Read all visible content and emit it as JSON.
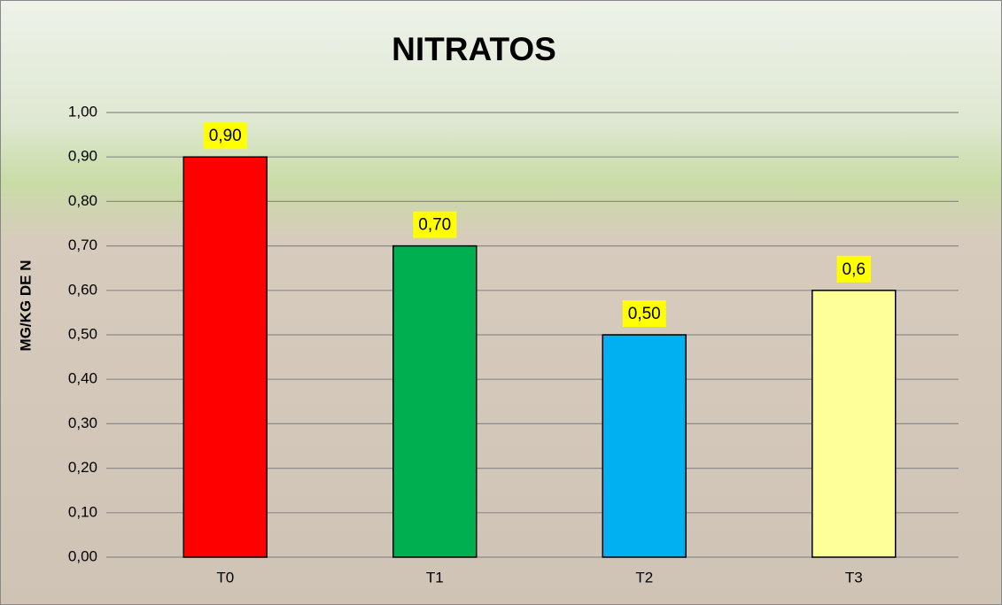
{
  "chart_data": {
    "type": "bar",
    "title": "NITRATOS",
    "y_label": "MG/KG DE N",
    "categories": [
      "T0",
      "T1",
      "T2",
      "T3"
    ],
    "values": [
      0.9,
      0.7,
      0.5,
      0.6
    ],
    "value_labels": [
      "0,90",
      "0,70",
      "0,50",
      "0,6"
    ],
    "colors": [
      "#ff0000",
      "#00b050",
      "#00b0f0",
      "#ffff99"
    ],
    "ylim": [
      0,
      1
    ],
    "yticks": [
      {
        "value": 0,
        "label": "0,00"
      },
      {
        "value": 0.1,
        "label": "0,10"
      },
      {
        "value": 0.2,
        "label": "0,20"
      },
      {
        "value": 0.3,
        "label": "0,30"
      },
      {
        "value": 0.4,
        "label": "0,40"
      },
      {
        "value": 0.5,
        "label": "0,50"
      },
      {
        "value": 0.6,
        "label": "0,60"
      },
      {
        "value": 0.7,
        "label": "0,70"
      },
      {
        "value": 0.8,
        "label": "0,80"
      },
      {
        "value": 0.9,
        "label": "0,90"
      },
      {
        "value": 1,
        "label": "1,00"
      }
    ],
    "grid": true
  }
}
